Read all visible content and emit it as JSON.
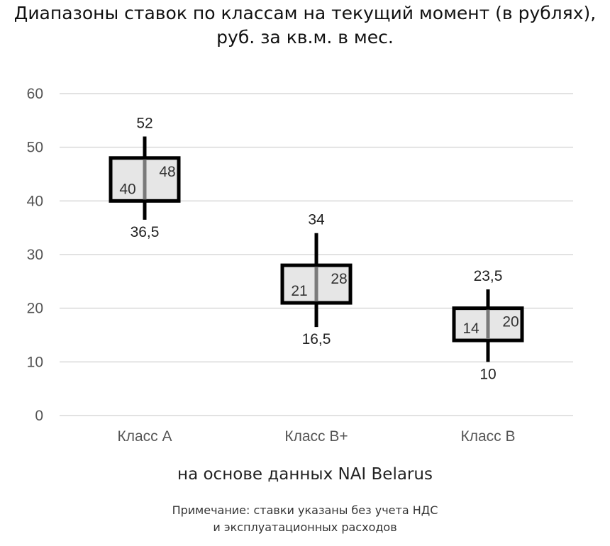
{
  "title": {
    "line1": "Диапазоны ставок по классам на текущий момент (в рублях),",
    "line2": "руб. за кв.м. в мес."
  },
  "source": "на основе данных NAI Belarus",
  "note": {
    "line1": "Примечание: ставки указаны без учета НДС",
    "line2": "и эксплуатационных расходов"
  },
  "chart_data": {
    "type": "range",
    "ylim": [
      0,
      60
    ],
    "yticks": [
      0,
      10,
      20,
      30,
      40,
      50,
      60
    ],
    "grid": true,
    "categories": [
      "Класс А",
      "Класс В+",
      "Класс В"
    ],
    "ranges": [
      {
        "category": "Класс А",
        "min": 36.5,
        "low": 40,
        "high": 48,
        "max": 52,
        "labels": {
          "min": "36,5",
          "low": "40",
          "high": "48",
          "max": "52"
        }
      },
      {
        "category": "Класс В+",
        "min": 16.5,
        "low": 21,
        "high": 28,
        "max": 34,
        "labels": {
          "min": "16,5",
          "low": "21",
          "high": "28",
          "max": "34"
        }
      },
      {
        "category": "Класс В",
        "min": 10,
        "low": 14,
        "high": 20,
        "max": 23.5,
        "labels": {
          "min": "10",
          "low": "14",
          "high": "20",
          "max": "23,5"
        }
      }
    ],
    "colors": {
      "box_fill": "#e6e6e6",
      "box_stroke": "#000000",
      "whisker": "#000000",
      "median_line": "#7a7a7a",
      "grid": "#d9d9d9",
      "tick_text": "#555555"
    }
  }
}
